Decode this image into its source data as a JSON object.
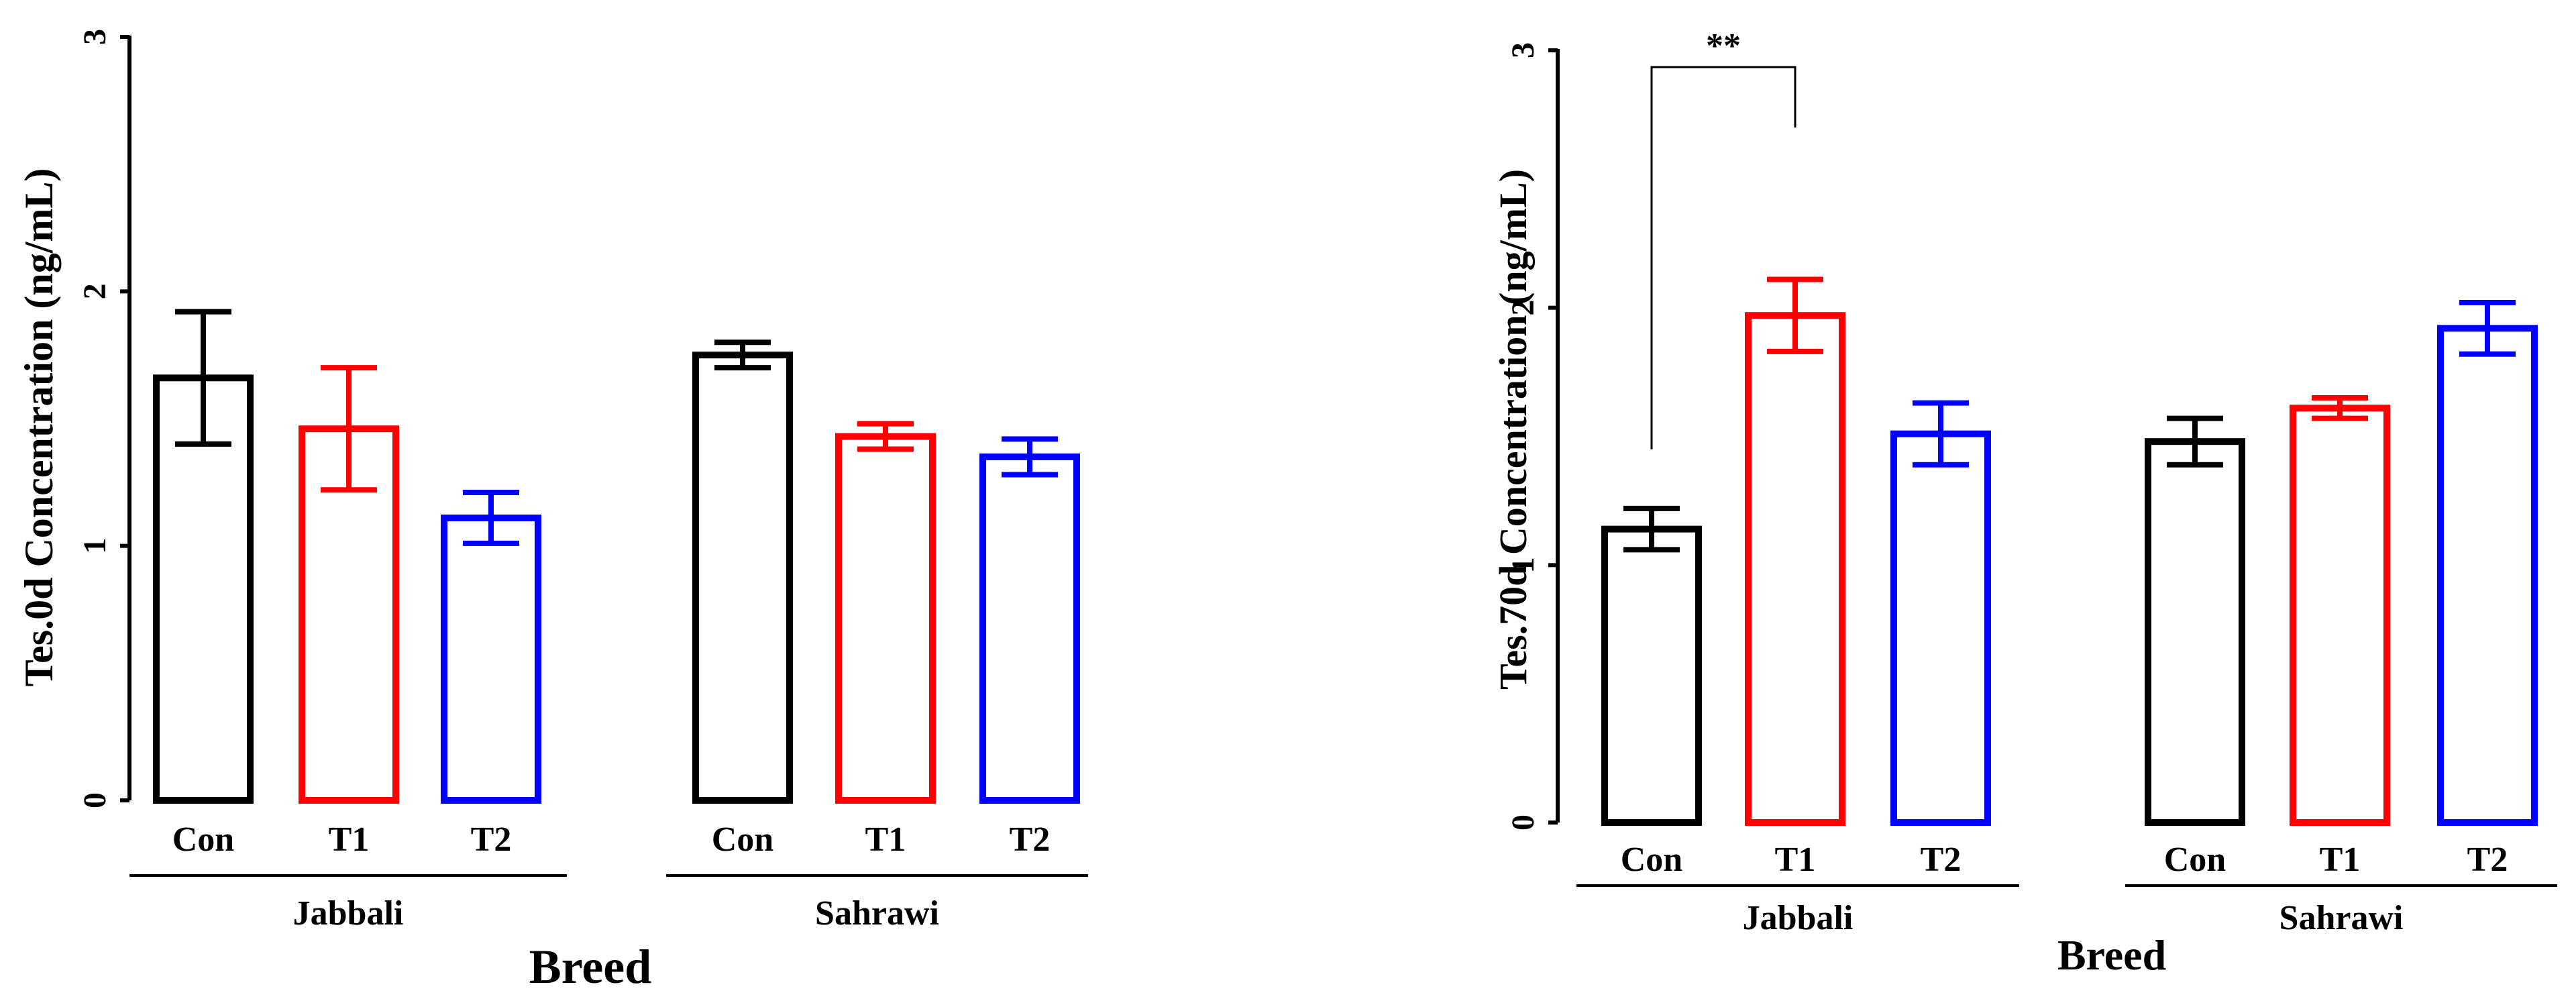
{
  "chart_data": [
    {
      "type": "bar",
      "ylabel": "Tes.0d Concentration (ng/mL)",
      "xlabel": "Breed",
      "ylim": [
        0,
        3
      ],
      "yticks": [
        "0",
        "1",
        "2",
        "3"
      ],
      "categories": [
        "Con",
        "T1",
        "T2"
      ],
      "groups": [
        {
          "name": "Jabbali",
          "bars": [
            {
              "label": "Con",
              "value": 1.66,
              "error": 0.26,
              "color": "#000000"
            },
            {
              "label": "T1",
              "value": 1.46,
              "error": 0.24,
              "color": "#ff0000"
            },
            {
              "label": "T2",
              "value": 1.11,
              "error": 0.1,
              "color": "#0000ff"
            }
          ]
        },
        {
          "name": "Sahrawi",
          "bars": [
            {
              "label": "Con",
              "value": 1.75,
              "error": 0.05,
              "color": "#000000"
            },
            {
              "label": "T1",
              "value": 1.43,
              "error": 0.05,
              "color": "#ff0000"
            },
            {
              "label": "T2",
              "value": 1.35,
              "error": 0.07,
              "color": "#0000ff"
            }
          ]
        }
      ],
      "significance": []
    },
    {
      "type": "bar",
      "ylabel": "Tes.70d Concentration (ng/mL)",
      "xlabel": "Breed",
      "ylim": [
        0,
        3
      ],
      "yticks": [
        "0",
        "1",
        "2",
        "3"
      ],
      "categories": [
        "Con",
        "T1",
        "T2"
      ],
      "groups": [
        {
          "name": "Jabbali",
          "bars": [
            {
              "label": "Con",
              "value": 1.14,
              "error": 0.08,
              "color": "#000000"
            },
            {
              "label": "T1",
              "value": 1.97,
              "error": 0.14,
              "color": "#ff0000"
            },
            {
              "label": "T2",
              "value": 1.51,
              "error": 0.12,
              "color": "#0000ff"
            }
          ]
        },
        {
          "name": "Sahrawi",
          "bars": [
            {
              "label": "Con",
              "value": 1.48,
              "error": 0.09,
              "color": "#000000"
            },
            {
              "label": "T1",
              "value": 1.61,
              "error": 0.04,
              "color": "#ff0000"
            },
            {
              "label": "T2",
              "value": 1.92,
              "error": 0.1,
              "color": "#0000ff"
            }
          ]
        }
      ],
      "significance": [
        {
          "label": "**",
          "from": "Jabbali Con",
          "to": "Jabbali T1",
          "bracket_level": 3.0,
          "left_end": 1.45,
          "right_end": 2.7
        }
      ]
    }
  ]
}
